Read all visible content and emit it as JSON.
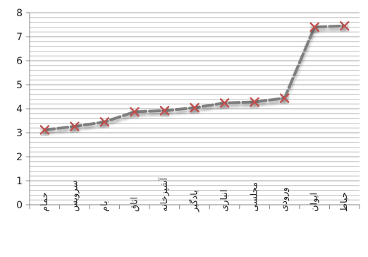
{
  "chart_data": {
    "type": "line",
    "categories": [
      "حمام",
      "سرویس",
      "بام",
      "اتاق",
      "آشپزخانه",
      "بادگیر",
      "انباری",
      "مجلسی",
      "ورودی",
      "ایوان",
      "حیاط"
    ],
    "values": [
      3.12,
      3.26,
      3.45,
      3.87,
      3.92,
      4.04,
      4.24,
      4.28,
      4.44,
      7.4,
      7.45
    ],
    "ylim": [
      0,
      8
    ],
    "yticks": [
      0,
      1,
      2,
      3,
      4,
      5,
      6,
      7,
      8
    ],
    "minor_gridlines_per_unit": 5,
    "grid": true,
    "legend": "none",
    "line_style": "dashed",
    "colors": {
      "line": "#7f7f7f",
      "marker": "#c0504d",
      "grid": "#a6a6a6",
      "axis": "#868686"
    }
  }
}
